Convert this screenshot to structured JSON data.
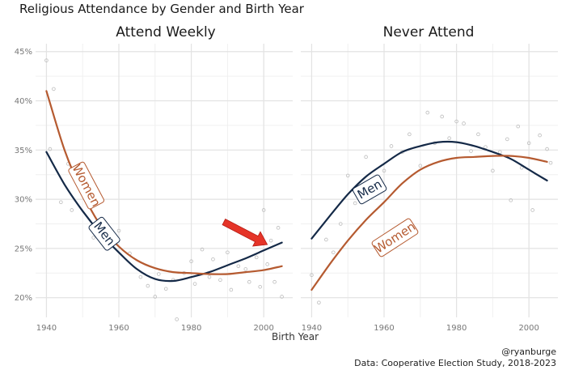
{
  "title": "Religious Attendance by Gender and Birth Year",
  "xlabel": "Birth Year",
  "credit_handle": "@ryanburge",
  "credit_source": "Data: Cooperative Election Study, 2018-2023",
  "colors": {
    "men": "#142947",
    "women": "#b55a30",
    "point": "#bdbdbd",
    "arrow": "#e53428"
  },
  "chart_data": [
    {
      "type": "line",
      "title": "Attend Weekly",
      "xlim": [
        1937,
        2008
      ],
      "ylim": [
        18,
        45.8
      ],
      "x_ticks": [
        1940,
        1960,
        1980,
        2000
      ],
      "y_ticks": [
        20,
        25,
        30,
        35,
        40,
        45
      ],
      "y_tick_labels": [
        "20%",
        "25%",
        "30%",
        "35%",
        "40%",
        "45%"
      ],
      "series": [
        {
          "name": "Men",
          "x": [
            1940,
            1945,
            1950,
            1955,
            1960,
            1965,
            1970,
            1975,
            1980,
            1985,
            1990,
            1995,
            2000,
            2005
          ],
          "y": [
            34.8,
            31.5,
            28.8,
            26.5,
            24.6,
            22.9,
            21.9,
            21.7,
            22.1,
            22.6,
            23.3,
            24.0,
            24.8,
            25.6
          ]
        },
        {
          "name": "Women",
          "x": [
            1940,
            1945,
            1950,
            1955,
            1960,
            1965,
            1970,
            1975,
            1980,
            1985,
            1990,
            1995,
            2000,
            2005
          ],
          "y": [
            41.0,
            35.0,
            30.6,
            27.3,
            25.2,
            23.8,
            23.0,
            22.6,
            22.5,
            22.4,
            22.4,
            22.6,
            22.8,
            23.2
          ]
        }
      ],
      "points": [
        [
          1940,
          44.1
        ],
        [
          1941,
          35.1
        ],
        [
          1942,
          41.2
        ],
        [
          1944,
          29.7
        ],
        [
          1946,
          33.6
        ],
        [
          1947,
          28.9
        ],
        [
          1951,
          30.1
        ],
        [
          1953,
          26.1
        ],
        [
          1955,
          27.9
        ],
        [
          1960,
          26.8
        ],
        [
          1963,
          24.5
        ],
        [
          1966,
          22.1
        ],
        [
          1968,
          21.2
        ],
        [
          1970,
          20.1
        ],
        [
          1971,
          22.4
        ],
        [
          1973,
          20.9
        ],
        [
          1975,
          21.8
        ],
        [
          1976,
          17.8
        ],
        [
          1978,
          22.5
        ],
        [
          1980,
          23.7
        ],
        [
          1981,
          21.4
        ],
        [
          1983,
          24.9
        ],
        [
          1985,
          22.1
        ],
        [
          1986,
          23.9
        ],
        [
          1988,
          21.8
        ],
        [
          1990,
          24.6
        ],
        [
          1991,
          20.8
        ],
        [
          1993,
          23.2
        ],
        [
          1995,
          22.9
        ],
        [
          1996,
          21.6
        ],
        [
          1998,
          24.1
        ],
        [
          1999,
          21.1
        ],
        [
          2000,
          28.9
        ],
        [
          2001,
          23.4
        ],
        [
          2002,
          25.8
        ],
        [
          2003,
          21.6
        ],
        [
          2004,
          27.1
        ],
        [
          2005,
          20.1
        ]
      ],
      "labels": [
        {
          "series": "Women",
          "text": "Women",
          "x": 1951,
          "y": 31.4,
          "angle": 62
        },
        {
          "series": "Men",
          "text": "Men",
          "x": 1956,
          "y": 26.5,
          "angle": 52
        }
      ],
      "arrow": {
        "from": [
          1989,
          27.7
        ],
        "to": [
          2001,
          25.4
        ]
      }
    },
    {
      "type": "line",
      "title": "Never Attend",
      "xlim": [
        1937,
        2008
      ],
      "ylim": [
        18,
        45.8
      ],
      "x_ticks": [
        1940,
        1960,
        1980,
        2000
      ],
      "series": [
        {
          "name": "Men",
          "x": [
            1940,
            1945,
            1950,
            1955,
            1960,
            1965,
            1970,
            1975,
            1980,
            1985,
            1990,
            1995,
            2000,
            2005
          ],
          "y": [
            26.0,
            28.3,
            30.5,
            32.3,
            33.6,
            34.8,
            35.4,
            35.8,
            35.8,
            35.4,
            34.8,
            34.1,
            33.0,
            31.9
          ]
        },
        {
          "name": "Women",
          "x": [
            1940,
            1945,
            1950,
            1955,
            1960,
            1965,
            1970,
            1975,
            1980,
            1985,
            1990,
            1995,
            2000,
            2005
          ],
          "y": [
            20.8,
            23.4,
            25.8,
            27.9,
            29.7,
            31.6,
            33.0,
            33.8,
            34.2,
            34.3,
            34.4,
            34.4,
            34.2,
            33.8
          ]
        }
      ],
      "points": [
        [
          1940,
          22.3
        ],
        [
          1942,
          19.5
        ],
        [
          1944,
          25.9
        ],
        [
          1946,
          24.6
        ],
        [
          1948,
          27.5
        ],
        [
          1950,
          32.4
        ],
        [
          1952,
          29.6
        ],
        [
          1955,
          34.3
        ],
        [
          1957,
          30.5
        ],
        [
          1960,
          32.9
        ],
        [
          1962,
          35.4
        ],
        [
          1965,
          34.8
        ],
        [
          1967,
          36.6
        ],
        [
          1970,
          33.4
        ],
        [
          1972,
          38.8
        ],
        [
          1974,
          35.7
        ],
        [
          1976,
          38.4
        ],
        [
          1978,
          36.2
        ],
        [
          1980,
          37.9
        ],
        [
          1982,
          37.7
        ],
        [
          1984,
          34.9
        ],
        [
          1986,
          36.6
        ],
        [
          1988,
          35.3
        ],
        [
          1990,
          32.9
        ],
        [
          1992,
          34.8
        ],
        [
          1994,
          36.1
        ],
        [
          1995,
          29.9
        ],
        [
          1997,
          37.4
        ],
        [
          1998,
          33.2
        ],
        [
          2000,
          35.7
        ],
        [
          2001,
          28.9
        ],
        [
          2003,
          36.5
        ],
        [
          2005,
          35.1
        ],
        [
          2006,
          33.7
        ]
      ],
      "labels": [
        {
          "series": "Men",
          "text": "Men",
          "x": 1956,
          "y": 31.0,
          "angle": -30
        },
        {
          "series": "Women",
          "text": "Women",
          "x": 1963,
          "y": 26.1,
          "angle": -33
        }
      ]
    }
  ]
}
